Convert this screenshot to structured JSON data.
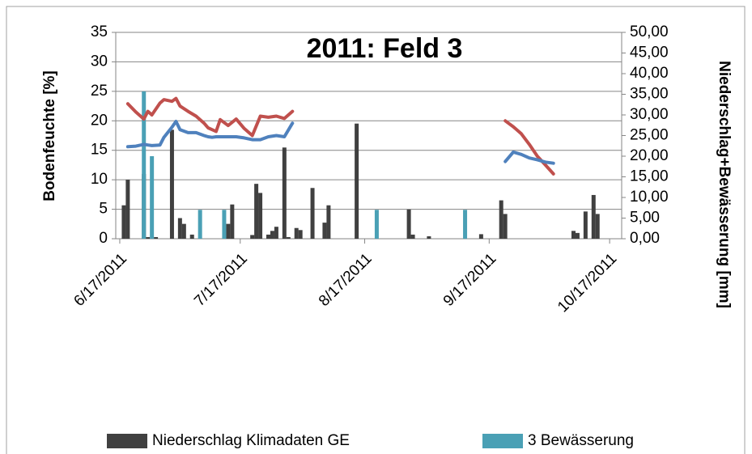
{
  "chart_data": {
    "type": "combo",
    "title": "2011: Feld 3",
    "ylabel": "Bodenfeuchte [%]",
    "y2label": "Niederschlag+Bewässerung [mm]",
    "xlim": [
      "2011-06-16",
      "2011-10-20"
    ],
    "xticks": [
      {
        "value": "2011-06-17",
        "label": "6/17/2011"
      },
      {
        "value": "2011-07-17",
        "label": "7/17/2011"
      },
      {
        "value": "2011-08-17",
        "label": "8/17/2011"
      },
      {
        "value": "2011-09-17",
        "label": "9/17/2011"
      },
      {
        "value": "2011-10-17",
        "label": "10/17/2011"
      }
    ],
    "ylim": [
      0,
      35
    ],
    "yticks": [
      0,
      5,
      10,
      15,
      20,
      25,
      30,
      35
    ],
    "y2lim": [
      0,
      50
    ],
    "y2ticks": [
      {
        "value": 0,
        "label": "0,00"
      },
      {
        "value": 5,
        "label": "5,00"
      },
      {
        "value": 10,
        "label": "10,00"
      },
      {
        "value": 15,
        "label": "15,00"
      },
      {
        "value": 20,
        "label": "20,00"
      },
      {
        "value": 25,
        "label": "25,00"
      },
      {
        "value": 30,
        "label": "30,00"
      },
      {
        "value": 35,
        "label": "35,00"
      },
      {
        "value": 40,
        "label": "40,00"
      },
      {
        "value": 45,
        "label": "45,00"
      },
      {
        "value": 50,
        "label": "50,00"
      }
    ],
    "grid": true,
    "legend": "bottom",
    "series": [
      {
        "name": "Niederschlag Klimadaten GE",
        "type": "bar",
        "axis": "y2",
        "color": "#404040",
        "x": [
          "2011-06-18",
          "2011-06-19",
          "2011-06-23",
          "2011-06-24",
          "2011-06-26",
          "2011-06-30",
          "2011-07-02",
          "2011-07-03",
          "2011-07-05",
          "2011-07-14",
          "2011-07-15",
          "2011-07-20",
          "2011-07-21",
          "2011-07-22",
          "2011-07-24",
          "2011-07-25",
          "2011-07-26",
          "2011-07-28",
          "2011-07-29",
          "2011-07-31",
          "2011-08-01",
          "2011-08-04",
          "2011-08-07",
          "2011-08-08",
          "2011-08-15",
          "2011-08-28",
          "2011-08-29",
          "2011-09-02",
          "2011-09-15",
          "2011-09-20",
          "2011-09-21",
          "2011-10-08",
          "2011-10-09",
          "2011-10-11",
          "2011-10-13",
          "2011-10-14"
        ],
        "values": [
          8.1,
          14.3,
          15.7,
          0.4,
          0.4,
          26.4,
          5,
          3.6,
          1,
          3.6,
          8.3,
          0.9,
          13.3,
          11.1,
          1,
          1.9,
          2.9,
          22.1,
          0.4,
          2.6,
          2.1,
          12.3,
          3.9,
          8.1,
          27.9,
          7.1,
          1,
          0.6,
          1.1,
          9.3,
          6,
          1.9,
          1.4,
          6.6,
          10.6,
          6
        ]
      },
      {
        "name": "3 Bewässerung",
        "type": "bar",
        "axis": "y2",
        "color": "#4aa0b5",
        "x": [
          "2011-06-23",
          "2011-06-25",
          "2011-07-07",
          "2011-07-13",
          "2011-08-20",
          "2011-09-11"
        ],
        "values": [
          35.7,
          20,
          7,
          7,
          7,
          7
        ]
      },
      {
        "type": "line",
        "color": "#c0504d",
        "x": [
          "2011-06-19",
          "2011-06-21",
          "2011-06-23",
          "2011-06-24",
          "2011-06-25",
          "2011-06-27",
          "2011-06-28",
          "2011-06-30",
          "2011-07-01",
          "2011-07-02",
          "2011-07-04",
          "2011-07-06",
          "2011-07-08",
          "2011-07-09",
          "2011-07-10",
          "2011-07-11",
          "2011-07-12",
          "2011-07-14",
          "2011-07-16",
          "2011-07-18",
          "2011-07-20",
          "2011-07-22",
          "2011-07-24",
          "2011-07-26",
          "2011-07-28",
          "2011-07-30",
          "2011-08-26",
          "2011-09-21",
          "2011-09-23",
          "2011-09-25",
          "2011-09-27",
          "2011-09-29",
          "2011-10-01",
          "2011-10-03"
        ],
        "values": [
          22.9,
          21.5,
          20.3,
          21.6,
          21,
          23,
          23.6,
          23.3,
          23.8,
          22.5,
          21.6,
          20.8,
          19.6,
          18.8,
          18.5,
          18.2,
          20.2,
          19.2,
          20.3,
          18.7,
          17.5,
          20.8,
          20.6,
          20.8,
          20.4,
          21.6,
          null,
          20,
          19,
          17.8,
          16,
          14,
          12.5,
          11
        ]
      },
      {
        "type": "line",
        "color": "#4f81bd",
        "x": [
          "2011-06-19",
          "2011-06-21",
          "2011-06-23",
          "2011-06-24",
          "2011-06-25",
          "2011-06-27",
          "2011-06-28",
          "2011-06-30",
          "2011-07-01",
          "2011-07-02",
          "2011-07-04",
          "2011-07-06",
          "2011-07-08",
          "2011-07-09",
          "2011-07-10",
          "2011-07-11",
          "2011-07-12",
          "2011-07-14",
          "2011-07-16",
          "2011-07-18",
          "2011-07-20",
          "2011-07-22",
          "2011-07-24",
          "2011-07-26",
          "2011-07-28",
          "2011-07-30",
          "2011-08-26",
          "2011-09-21",
          "2011-09-23",
          "2011-09-25",
          "2011-09-27",
          "2011-09-29",
          "2011-10-01",
          "2011-10-03"
        ],
        "values": [
          15.6,
          15.7,
          16,
          15.9,
          15.8,
          15.9,
          17.2,
          18.9,
          19.9,
          18.5,
          18,
          18,
          17.5,
          17.3,
          17.2,
          17.3,
          17.3,
          17.3,
          17.3,
          17.1,
          16.8,
          16.8,
          17.3,
          17.5,
          17.3,
          19.6,
          null,
          13.1,
          14.7,
          14.3,
          13.7,
          13.4,
          13,
          12.8
        ]
      }
    ]
  }
}
